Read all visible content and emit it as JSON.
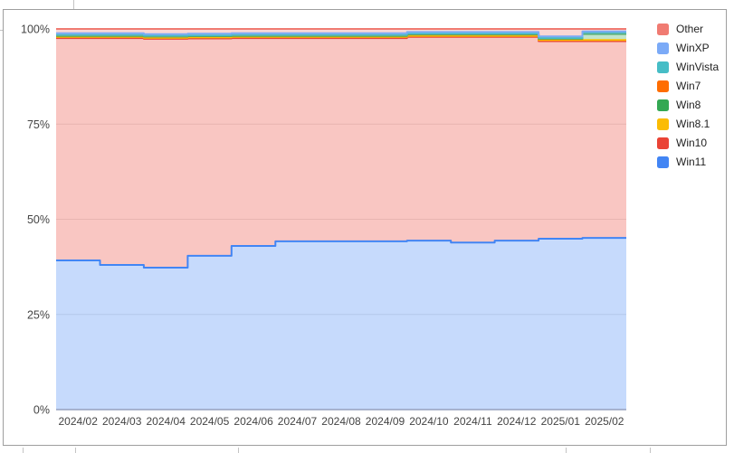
{
  "chart_data": {
    "type": "area",
    "variant": "stepped_stacked_percent",
    "title": "",
    "xlabel": "",
    "ylabel": "",
    "ylim": [
      0,
      100
    ],
    "grid": true,
    "legend_position": "right",
    "x": [
      "2024/02",
      "2024/03",
      "2024/04",
      "2024/05",
      "2024/06",
      "2024/07",
      "2024/08",
      "2024/09",
      "2024/10",
      "2024/11",
      "2024/12",
      "2025/01",
      "2025/02"
    ],
    "yticks": [
      {
        "value": 0,
        "label": "0%"
      },
      {
        "value": 25,
        "label": "25%"
      },
      {
        "value": 50,
        "label": "50%"
      },
      {
        "value": 75,
        "label": "75%"
      },
      {
        "value": 100,
        "label": "100%"
      }
    ],
    "series": [
      {
        "name": "Other",
        "color": "#f07b72",
        "values": [
          1.15,
          1.15,
          1.35,
          1.25,
          1.15,
          1.15,
          1.15,
          1.15,
          0.8,
          0.8,
          0.8,
          1.95,
          0.65
        ]
      },
      {
        "name": "WinXP",
        "color": "#7baaf7",
        "values": [
          0.45,
          0.45,
          0.45,
          0.45,
          0.45,
          0.45,
          0.45,
          0.45,
          0.45,
          0.45,
          0.45,
          0.45,
          0.45
        ]
      },
      {
        "name": "WinVista",
        "color": "#46bdc6",
        "values": [
          0.05,
          0.05,
          0.05,
          0.05,
          0.05,
          0.05,
          0.05,
          0.05,
          0.05,
          0.05,
          0.05,
          0.05,
          0.05
        ]
      },
      {
        "name": "Win7",
        "color": "#ff6d01",
        "values": [
          0.15,
          0.15,
          0.15,
          0.15,
          0.15,
          0.15,
          0.15,
          0.15,
          0.15,
          0.15,
          0.15,
          0.15,
          0.15
        ]
      },
      {
        "name": "Win8",
        "color": "#34a853",
        "values": [
          0.3,
          0.3,
          0.3,
          0.3,
          0.3,
          0.3,
          0.3,
          0.3,
          0.35,
          0.35,
          0.35,
          0.3,
          1.6
        ]
      },
      {
        "name": "Win8.1",
        "color": "#fbbc04",
        "values": [
          0.3,
          0.3,
          0.3,
          0.3,
          0.3,
          0.3,
          0.3,
          0.3,
          0.3,
          0.3,
          0.3,
          0.3,
          0.3
        ]
      },
      {
        "name": "Win10",
        "color": "#ea4335",
        "values": [
          58.4,
          59.6,
          60.1,
          57.1,
          54.6,
          53.4,
          53.4,
          53.4,
          53.5,
          54.0,
          53.5,
          51.9,
          51.7
        ]
      },
      {
        "name": "Win11",
        "color": "#4285f4",
        "values": [
          39.2,
          38.0,
          37.3,
          40.4,
          43.0,
          44.2,
          44.2,
          44.2,
          44.4,
          43.9,
          44.4,
          44.9,
          45.1
        ]
      }
    ],
    "series_note": "listed top-of-stack first; stacked to 100%",
    "axis_label_color": "#444444",
    "gridline_color": "#e6e6e6",
    "baseline_color": "#96a0be",
    "fill_opacity": 0.3
  }
}
